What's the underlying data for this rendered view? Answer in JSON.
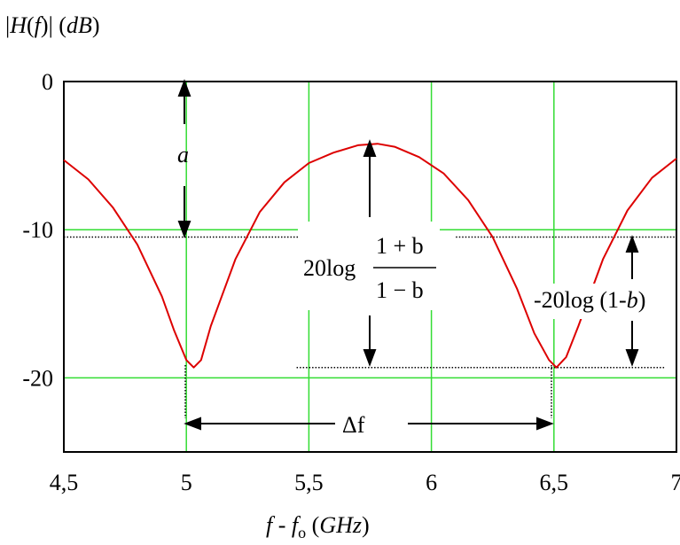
{
  "chart_data": {
    "type": "line",
    "ylabel": {
      "prefix": "|",
      "H": "H",
      "open": "(",
      "f": "f",
      "close": ")| (",
      "unit": "dB",
      "end": ")"
    },
    "xlabel": {
      "f": "f",
      "minus": " - ",
      "fo": "f",
      "sub": "o",
      "space": " (",
      "unit": "GHz",
      "end": ")"
    },
    "xlim": [
      4.5,
      7
    ],
    "ylim": [
      -25,
      0
    ],
    "x_ticks": [
      4.5,
      5,
      5.5,
      6,
      6.5,
      7
    ],
    "x_tick_labels": [
      "4,5",
      "5",
      "5,5",
      "6",
      "6,5",
      "7"
    ],
    "y_ticks": [
      0,
      -10,
      -20
    ],
    "y_tick_labels": [
      "0",
      "-10",
      "-20"
    ],
    "grid": true,
    "grid_color": "#33dd33",
    "line_color": "#dd0000",
    "series": [
      {
        "x": [
          4.5,
          4.6,
          4.7,
          4.8,
          4.9,
          4.95,
          5.0,
          5.03,
          5.06,
          5.1,
          5.2,
          5.3,
          5.4,
          5.5,
          5.6,
          5.7,
          5.78,
          5.85,
          5.95,
          6.05,
          6.15,
          6.25,
          6.35,
          6.42,
          6.48,
          6.51,
          6.55,
          6.6,
          6.7,
          6.8,
          6.9,
          7.0
        ],
        "y": [
          -5.3,
          -6.6,
          -8.5,
          -11.0,
          -14.5,
          -16.8,
          -18.8,
          -19.3,
          -18.8,
          -16.5,
          -12.0,
          -8.8,
          -6.8,
          -5.5,
          -4.8,
          -4.3,
          -4.2,
          -4.4,
          -5.1,
          -6.2,
          -8.0,
          -10.5,
          -14.0,
          -17.0,
          -18.8,
          -19.3,
          -18.6,
          -16.5,
          -12.0,
          -8.7,
          -6.5,
          -5.2
        ]
      }
    ],
    "reference_lines": [
      {
        "y": -10.5,
        "x_from": 4.5,
        "x_to": 5.5
      },
      {
        "y": -10.5,
        "x_from": 6.1,
        "x_to": 7.0
      },
      {
        "y": -19.3,
        "x_from": 5.45,
        "x_to": 6.95
      }
    ],
    "annotations": {
      "a": "a",
      "log_coef": "20log",
      "numerator": "1 + b",
      "denominator": "1 − b",
      "right_prefix": "-20log (1-",
      "right_b": "b",
      "right_suffix": ")",
      "delta_f": "Δf"
    }
  }
}
